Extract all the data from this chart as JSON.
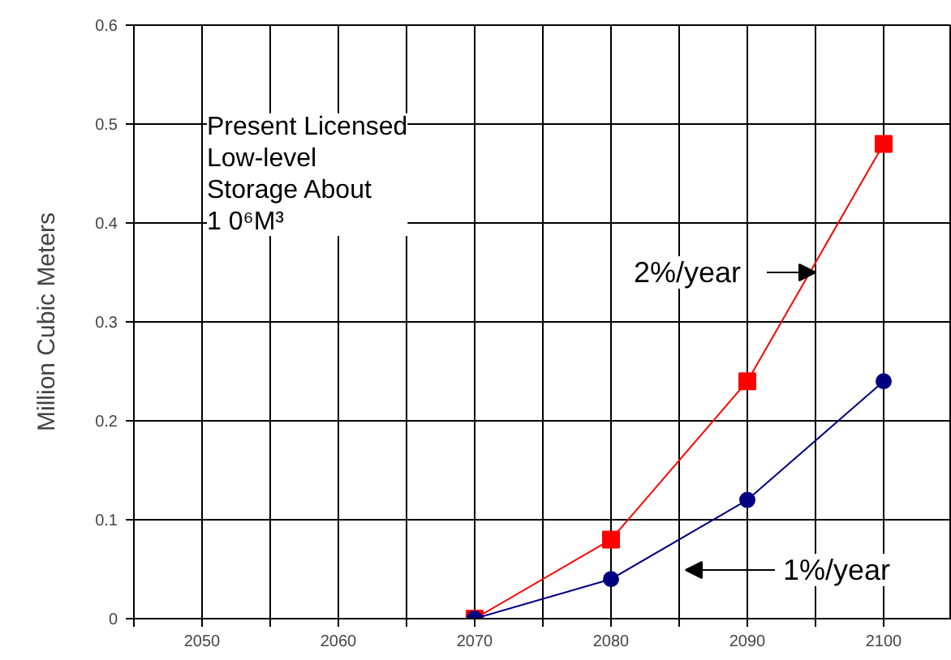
{
  "chart_data": {
    "type": "line",
    "ylabel": "Million Cubic Meters",
    "x": [
      2070,
      2080,
      2090,
      2100
    ],
    "series": [
      {
        "color": "#ff0000",
        "marker": "square",
        "values": [
          0,
          0.08,
          0.24,
          0.48
        ]
      },
      {
        "color": "#000080",
        "marker": "circle",
        "values": [
          0,
          0.04,
          0.12,
          0.24
        ]
      }
    ],
    "xlim": [
      2045,
      2105
    ],
    "ylim": [
      0,
      0.6
    ],
    "xticks": [
      {
        "value": 2045,
        "label": null
      },
      2050,
      {
        "value": 2055,
        "label": null
      },
      2060,
      {
        "value": 2065,
        "label": null
      },
      2070,
      {
        "value": 2075,
        "label": null
      },
      2080,
      {
        "value": 2085,
        "label": null
      },
      2090,
      {
        "value": 2095,
        "label": null
      },
      2100,
      {
        "value": 2105,
        "label": null
      }
    ],
    "yticks": [
      0,
      0.1,
      0.2,
      0.3,
      0.4,
      0.5,
      0.6
    ],
    "grid": true,
    "annotations": [
      "Present Licensed\nLow-level\nStorage About\n1 0⁶M³",
      {
        "text": "2%/year",
        "x": 2095,
        "y": 0.35
      },
      "1%/year"
    ]
  }
}
